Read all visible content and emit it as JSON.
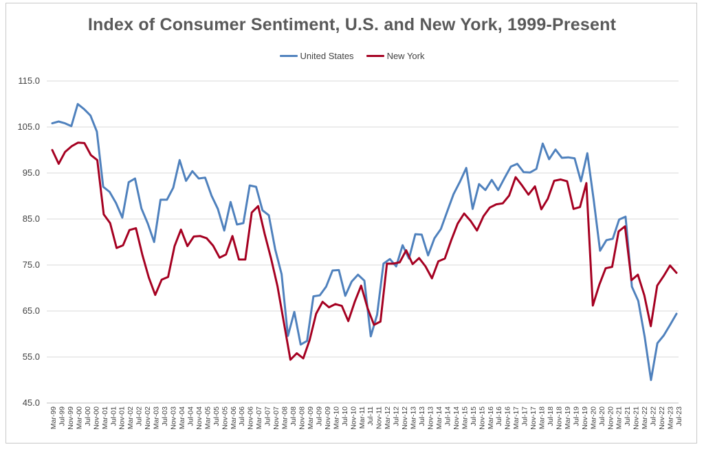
{
  "chart_data": {
    "type": "line",
    "title": "Index of Consumer Sentiment, U.S. and New York, 1999-Present",
    "xlabel": "",
    "ylabel": "",
    "ylim": [
      45,
      115
    ],
    "yticks": [
      "115.0",
      "105.0",
      "95.0",
      "85.0",
      "75.0",
      "65.0",
      "55.0",
      "45.0"
    ],
    "grid": "horizontal",
    "legend_position": "top-center",
    "x_tick_labels": [
      "Mar-99",
      "Jul-99",
      "Nov-99",
      "Mar-00",
      "Jul-00",
      "Nov-00",
      "Mar-01",
      "Jul-01",
      "Nov-01",
      "Mar-02",
      "Jul-02",
      "Nov-02",
      "Mar-03",
      "Jul-03",
      "Nov-03",
      "Mar-04",
      "Jul-04",
      "Nov-04",
      "Mar-05",
      "Jul-05",
      "Nov-05",
      "Mar-06",
      "Jul-06",
      "Nov-06",
      "Mar-07",
      "Jul-07",
      "Nov-07",
      "Mar-08",
      "Jul-08",
      "Nov-08",
      "Mar-09",
      "Jul-09",
      "Nov-09",
      "Mar-10",
      "Jul-10",
      "Nov-10",
      "Mar-11",
      "Jul-11",
      "Nov-11",
      "Mar-12",
      "Jul-12",
      "Nov-12",
      "Mar-13",
      "Jul-13",
      "Nov-13",
      "Mar-14",
      "Jul-14",
      "Nov-14",
      "Mar-15",
      "Jul-15",
      "Nov-15",
      "Mar-16",
      "Jul-16",
      "Nov-16",
      "Mar-17",
      "Jul-17",
      "Nov-17",
      "Mar-18",
      "Jul-18",
      "Nov-18",
      "Mar-19",
      "Jul-19",
      "Nov-19",
      "Mar-20",
      "Jul-20",
      "Nov-20",
      "Mar-21",
      "Jul-21",
      "Nov-21",
      "Mar-22",
      "Jul-22",
      "Nov-22",
      "Mar-23",
      "Jul-23"
    ],
    "series": [
      {
        "name": "United States",
        "color": "#4f81bd",
        "values": [
          105.8,
          106.2,
          105.8,
          105.2,
          110.0,
          108.9,
          107.5,
          104.0,
          92.0,
          90.9,
          88.5,
          85.3,
          93.0,
          93.8,
          87.3,
          84.0,
          80.0,
          89.2,
          89.2,
          91.8,
          97.8,
          93.3,
          95.4,
          93.8,
          94.0,
          90.1,
          87.2,
          82.5,
          88.7,
          83.8,
          84.1,
          92.3,
          92.0,
          86.9,
          85.8,
          78.4,
          73.0,
          59.6,
          64.8,
          57.7,
          58.5,
          68.2,
          68.4,
          70.3,
          73.8,
          73.9,
          68.3,
          71.4,
          72.9,
          71.6,
          59.5,
          64.2,
          75.3,
          76.3,
          74.7,
          79.3,
          76.4,
          81.7,
          81.6,
          77.1,
          80.8,
          82.8,
          86.6,
          90.4,
          93.1,
          96.1,
          87.2,
          92.6,
          91.3,
          93.5,
          91.3,
          93.9,
          96.4,
          97.0,
          95.2,
          95.1,
          95.9,
          101.4,
          98.0,
          100.1,
          98.3,
          98.4,
          98.2,
          93.2,
          99.3,
          89.1,
          78.1,
          80.4,
          80.7,
          84.9,
          85.5,
          70.3,
          67.2,
          59.4,
          50.0,
          58.0,
          59.7,
          62.0,
          64.4
        ],
        "y_last": 64.4
      },
      {
        "name": "New York",
        "color": "#a50021",
        "values": [
          100.0,
          97.0,
          99.6,
          100.8,
          101.6,
          101.5,
          98.9,
          97.8,
          86.0,
          84.1,
          78.7,
          79.3,
          82.6,
          83.0,
          77.2,
          72.3,
          68.5,
          71.8,
          72.4,
          79.1,
          82.7,
          79.1,
          81.2,
          81.3,
          80.8,
          79.2,
          76.6,
          77.3,
          81.3,
          76.2,
          76.2,
          86.4,
          87.8,
          81.8,
          76.4,
          70.4,
          62.4,
          54.4,
          55.8,
          54.7,
          58.7,
          64.4,
          67.0,
          65.8,
          66.5,
          66.1,
          62.8,
          67.0,
          70.5,
          65.6,
          62.0,
          62.7,
          75.3,
          75.3,
          75.6,
          78.2,
          75.2,
          76.5,
          74.7,
          72.1,
          75.8,
          76.4,
          80.4,
          84.0,
          86.2,
          84.6,
          82.5,
          85.6,
          87.5,
          88.2,
          88.4,
          90.1,
          94.1,
          92.3,
          90.3,
          92.1,
          87.1,
          89.4,
          93.3,
          93.6,
          93.2,
          87.2,
          87.6,
          92.8,
          66.2,
          70.7,
          74.3,
          74.6,
          82.3,
          83.4,
          71.7,
          72.9,
          68.4,
          61.7,
          70.5,
          72.6,
          74.9,
          73.3
        ],
        "y_last": 73.3
      }
    ]
  }
}
